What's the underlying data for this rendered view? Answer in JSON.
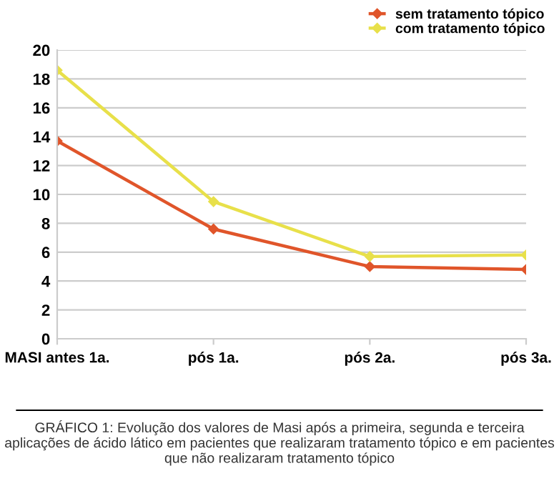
{
  "chart_data": {
    "type": "line",
    "categories": [
      "MASI antes 1a.",
      "pós 1a.",
      "pós 2a.",
      "pós 3a."
    ],
    "series": [
      {
        "name": "sem tratamento tópico",
        "color": "#e0552a",
        "values": [
          13.7,
          7.6,
          5.0,
          4.8
        ]
      },
      {
        "name": "com tratamento tópico",
        "color": "#e8e04a",
        "values": [
          18.6,
          9.5,
          5.7,
          5.8
        ]
      }
    ],
    "ylim": [
      0,
      20
    ],
    "yticks": [
      0,
      2,
      4,
      6,
      8,
      10,
      12,
      14,
      16,
      18,
      20
    ],
    "grid": "y",
    "legend": "top right",
    "marker": "diamond",
    "line_style": "solid",
    "annotations": [
      "GRÁFICO 1: Evolução dos valores de Masi após a primeira, segunda e terceira aplicações de ácido lático em pacientes que realizaram tratamento tópico e em pacientes que não realizaram tratamento tópico"
    ]
  }
}
